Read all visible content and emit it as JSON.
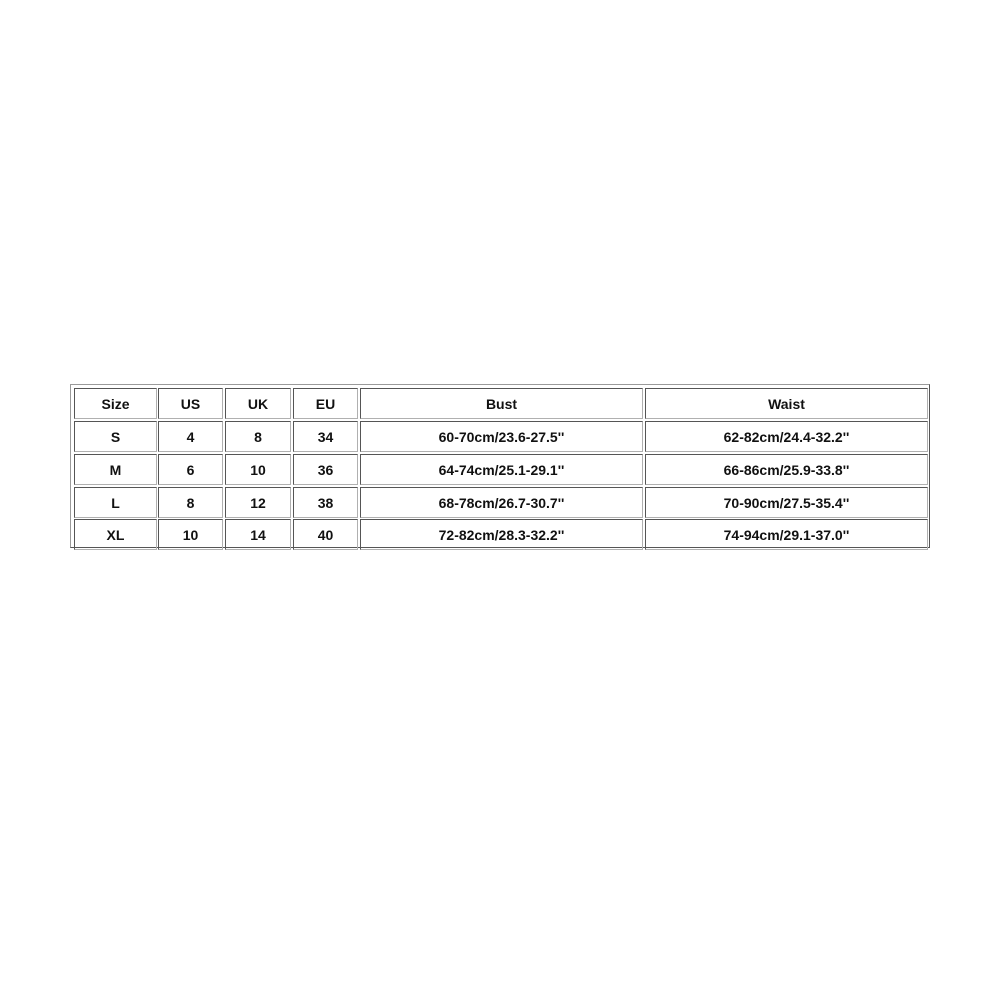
{
  "table": {
    "headers": [
      "Size",
      "US",
      "UK",
      "EU",
      "Bust",
      "Waist"
    ],
    "rows": [
      [
        "S",
        "4",
        "8",
        "34",
        "60-70cm/23.6-27.5''",
        "62-82cm/24.4-32.2''"
      ],
      [
        "M",
        "6",
        "10",
        "36",
        "64-74cm/25.1-29.1''",
        "66-86cm/25.9-33.8''"
      ],
      [
        "L",
        "8",
        "12",
        "38",
        "68-78cm/26.7-30.7''",
        "70-90cm/27.5-35.4''"
      ],
      [
        "XL",
        "10",
        "14",
        "40",
        "72-82cm/28.3-32.2''",
        "74-94cm/29.1-37.0''"
      ]
    ]
  }
}
